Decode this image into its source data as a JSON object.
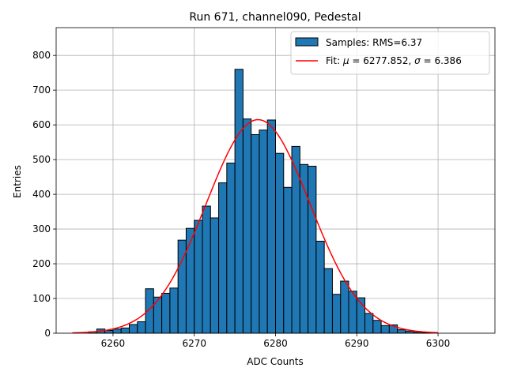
{
  "chart_data": {
    "type": "bar",
    "title": "Run 671, channel090, Pedestal",
    "xlabel": "ADC Counts",
    "ylabel": "Entries",
    "xlim": [
      6253,
      6307
    ],
    "ylim": [
      0,
      880
    ],
    "xticks": [
      6260,
      6270,
      6280,
      6290,
      6300
    ],
    "yticks": [
      0,
      100,
      200,
      300,
      400,
      500,
      600,
      700,
      800
    ],
    "grid": true,
    "legend_position": "top-right",
    "histogram": {
      "name": "Samples: RMS=6.37",
      "color": "#1f77b4",
      "bin_start": 6257,
      "bin_width": 1,
      "counts": [
        4,
        12,
        8,
        12,
        15,
        25,
        33,
        128,
        104,
        115,
        130,
        268,
        302,
        325,
        366,
        332,
        433,
        490,
        760,
        617,
        572,
        585,
        614,
        518,
        420,
        538,
        486,
        481,
        265,
        186,
        112,
        150,
        121,
        102,
        57,
        37,
        22,
        24,
        10,
        6,
        3,
        2
      ]
    },
    "fit": {
      "name_prefix": "Fit: ",
      "mu_symbol": "μ",
      "mu_value": "6277.852",
      "sigma_symbol": "σ",
      "sigma_value": "6.386",
      "mu": 6277.852,
      "sigma": 6.386,
      "amplitude": 615,
      "x_range": [
        6255,
        6300
      ],
      "color": "#ff0000"
    }
  }
}
